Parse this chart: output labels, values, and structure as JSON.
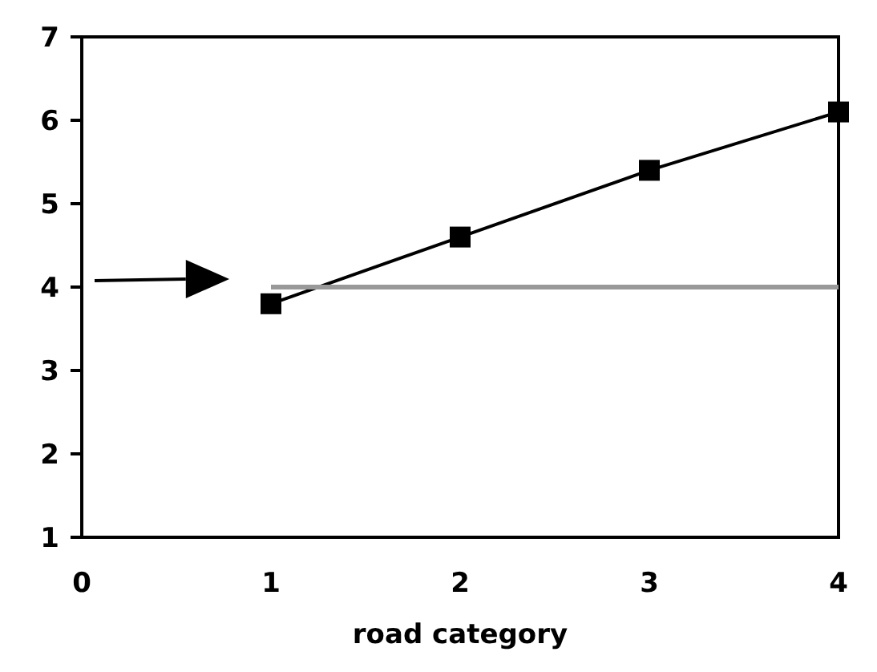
{
  "chart_data": {
    "type": "line",
    "xlabel": "road category",
    "x": [
      1,
      2,
      3,
      4
    ],
    "series": [
      {
        "color": "#000000",
        "values": [
          3.8,
          4.6,
          5.4,
          6.1
        ],
        "marker": "square"
      },
      {
        "color": "#999999",
        "values": [
          4,
          4,
          4,
          4
        ],
        "marker": "none"
      }
    ],
    "xlim": [
      0,
      4
    ],
    "xticks": [
      0,
      1,
      2,
      3,
      4
    ],
    "ylim": [
      1,
      7
    ],
    "yticks": [
      1,
      2,
      3,
      4,
      5,
      6,
      7
    ],
    "grid": false
  }
}
